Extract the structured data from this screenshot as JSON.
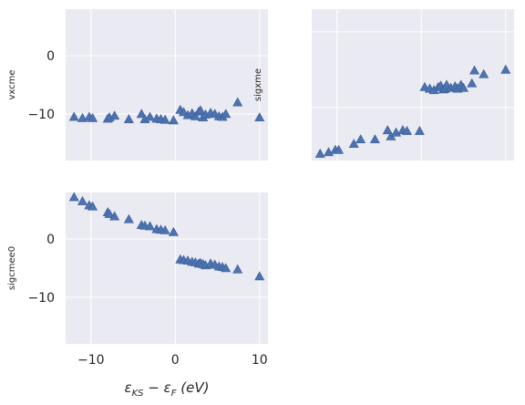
{
  "chart_data": [
    {
      "type": "scatter",
      "ylabel": "vxcme",
      "xlim": [
        -13,
        11
      ],
      "ylim": [
        -18,
        8
      ],
      "xticks": [
        -10,
        0,
        10
      ],
      "yticks": [
        0,
        -10
      ],
      "show_xticklabels": false,
      "show_yticklabels": true,
      "grid": true,
      "marker": "triangle-up",
      "color": "#4C72B0",
      "x": [
        -12.0,
        -11.0,
        -10.2,
        -9.8,
        -8.0,
        -7.8,
        -7.2,
        -5.5,
        -4.0,
        -3.6,
        -3.0,
        -2.2,
        -1.7,
        -1.2,
        -0.2,
        0.6,
        1.0,
        1.5,
        2.0,
        2.4,
        2.8,
        3.0,
        3.3,
        3.6,
        4.2,
        4.7,
        5.2,
        5.6,
        6.0,
        7.4,
        10.0
      ],
      "y": [
        -10.5,
        -10.7,
        -10.5,
        -10.7,
        -10.8,
        -10.6,
        -10.3,
        -10.9,
        -10.0,
        -10.9,
        -10.5,
        -10.8,
        -10.9,
        -11.0,
        -11.1,
        -9.3,
        -9.7,
        -10.2,
        -9.9,
        -10.4,
        -9.6,
        -9.4,
        -10.6,
        -10.1,
        -9.8,
        -10.0,
        -10.4,
        -10.5,
        -10.0,
        -8.0,
        -10.6
      ]
    },
    {
      "type": "scatter",
      "ylabel": "sigxme",
      "xlim": [
        -13,
        11
      ],
      "ylim": [
        -17,
        3
      ],
      "xticks": [
        -10,
        0,
        10
      ],
      "yticks": [
        0,
        -10
      ],
      "show_xticklabels": false,
      "show_yticklabels": false,
      "grid": true,
      "marker": "triangle-up",
      "color": "#4C72B0",
      "x": [
        -12.0,
        -11.0,
        -10.2,
        -9.8,
        -8.0,
        -7.2,
        -5.5,
        -4.0,
        -3.6,
        -3.0,
        -2.2,
        -1.7,
        -0.2,
        0.4,
        1.0,
        1.5,
        2.0,
        2.3,
        2.6,
        2.8,
        3.0,
        3.5,
        4.0,
        4.3,
        4.7,
        5.0,
        6.0,
        6.3,
        7.4,
        10.0
      ],
      "y": [
        -16.1,
        -15.9,
        -15.6,
        -15.6,
        -14.8,
        -14.2,
        -14.2,
        -13.0,
        -13.8,
        -13.3,
        -13.0,
        -13.1,
        -13.1,
        -7.3,
        -7.5,
        -7.7,
        -7.3,
        -7.1,
        -7.6,
        -7.5,
        -7.0,
        -7.4,
        -7.2,
        -7.5,
        -7.0,
        -7.4,
        -6.8,
        -5.1,
        -5.6,
        -5.0
      ]
    },
    {
      "type": "scatter",
      "ylabel": "sigcmee0",
      "xlabel": "εKS − εF (eV)",
      "xlim": [
        -13,
        11
      ],
      "ylim": [
        -18,
        8
      ],
      "xticks": [
        -10,
        0,
        10
      ],
      "yticks": [
        0,
        -10
      ],
      "show_xticklabels": true,
      "show_yticklabels": true,
      "grid": true,
      "marker": "triangle-up",
      "color": "#4C72B0",
      "x": [
        -12.0,
        -11.0,
        -10.2,
        -9.8,
        -8.0,
        -7.8,
        -7.2,
        -5.5,
        -4.0,
        -3.6,
        -3.0,
        -2.2,
        -1.7,
        -1.2,
        -0.2,
        0.6,
        1.0,
        1.5,
        2.0,
        2.4,
        2.8,
        3.0,
        3.3,
        3.6,
        4.2,
        4.7,
        5.2,
        5.6,
        6.0,
        7.4,
        10.0
      ],
      "y": [
        7.2,
        6.5,
        5.8,
        5.6,
        4.6,
        4.3,
        3.9,
        3.4,
        2.4,
        2.3,
        2.2,
        1.7,
        1.6,
        1.5,
        1.2,
        -3.5,
        -3.6,
        -3.7,
        -3.9,
        -4.0,
        -4.2,
        -4.1,
        -4.3,
        -4.5,
        -4.2,
        -4.4,
        -4.7,
        -4.8,
        -5.0,
        -5.2,
        -6.4
      ]
    }
  ],
  "xlabel_parts": {
    "e1": "ε",
    "s1": "KS",
    "minus": " − ",
    "e2": "ε",
    "s2": "F",
    "unit": " (eV)"
  }
}
